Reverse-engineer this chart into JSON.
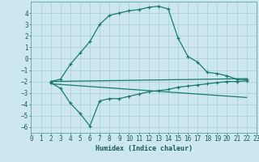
{
  "xlabel": "Humidex (Indice chaleur)",
  "xlim": [
    0,
    23
  ],
  "ylim": [
    -6.5,
    5
  ],
  "yticks": [
    -6,
    -5,
    -4,
    -3,
    -2,
    -1,
    0,
    1,
    2,
    3,
    4
  ],
  "xticks": [
    0,
    1,
    2,
    3,
    4,
    5,
    6,
    7,
    8,
    9,
    10,
    11,
    12,
    13,
    14,
    15,
    16,
    17,
    18,
    19,
    20,
    21,
    22,
    23
  ],
  "bg_color": "#cce8ee",
  "grid_color": "#aacdd6",
  "line_color": "#1a7a6e",
  "line1_x": [
    2,
    3,
    4,
    5,
    6,
    7,
    8,
    9,
    10,
    11,
    12,
    13,
    14,
    15,
    16,
    17,
    18,
    19,
    20,
    21,
    22
  ],
  "line1_y": [
    -2.0,
    -1.8,
    -0.5,
    0.5,
    1.5,
    3.0,
    3.8,
    4.0,
    4.2,
    4.3,
    4.5,
    4.6,
    4.35,
    1.8,
    0.2,
    -0.3,
    -1.2,
    -1.3,
    -1.5,
    -1.8,
    -1.85
  ],
  "line2_x": [
    2,
    3,
    4,
    5,
    6,
    7,
    8,
    9,
    10,
    11,
    12,
    13,
    14,
    15,
    16,
    17,
    18,
    19,
    20,
    21,
    22
  ],
  "line2_y": [
    -2.1,
    -2.6,
    -3.9,
    -4.8,
    -5.9,
    -3.7,
    -3.5,
    -3.5,
    -3.3,
    -3.1,
    -2.9,
    -2.8,
    -2.7,
    -2.5,
    -2.4,
    -2.3,
    -2.2,
    -2.1,
    -2.0,
    -2.0,
    -1.95
  ],
  "line3_x": [
    2,
    22
  ],
  "line3_y": [
    -2.0,
    -1.75
  ],
  "line4_x": [
    2,
    22
  ],
  "line4_y": [
    -2.2,
    -3.4
  ]
}
